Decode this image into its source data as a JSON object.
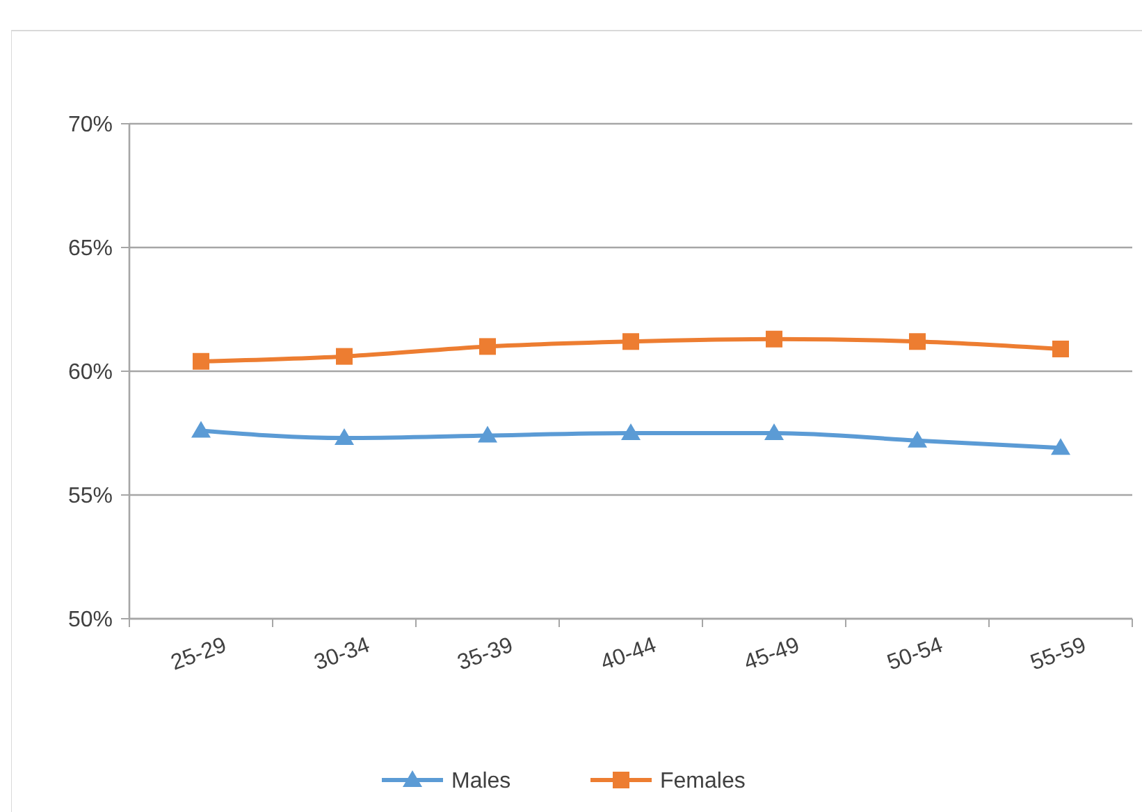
{
  "chart_data": {
    "type": "line",
    "categories": [
      "25-29",
      "30-34",
      "35-39",
      "40-44",
      "45-49",
      "50-54",
      "55-59"
    ],
    "series": [
      {
        "name": "Males",
        "color": "#5b9bd5",
        "marker": "triangle",
        "values": [
          57.6,
          57.3,
          57.4,
          57.5,
          57.5,
          57.2,
          56.9
        ]
      },
      {
        "name": "Females",
        "color": "#ed7d31",
        "marker": "square",
        "values": [
          60.4,
          60.6,
          61.0,
          61.2,
          61.3,
          61.2,
          60.9
        ]
      }
    ],
    "ylim": [
      50,
      70
    ],
    "yticks": [
      {
        "value": 50,
        "label": "50%"
      },
      {
        "value": 55,
        "label": "55%"
      },
      {
        "value": 60,
        "label": "60%"
      },
      {
        "value": 65,
        "label": "65%"
      },
      {
        "value": 70,
        "label": "70%"
      }
    ],
    "grid": "y",
    "legend": "bottom",
    "line_style": "solid"
  }
}
